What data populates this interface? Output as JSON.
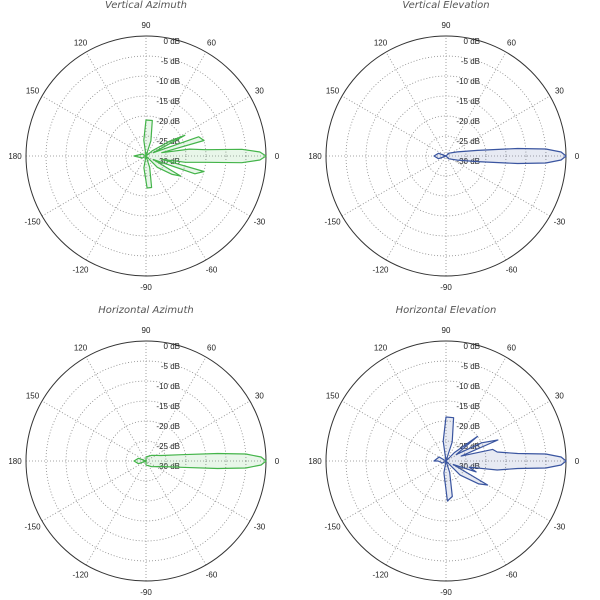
{
  "chart_data": [
    {
      "type": "polar",
      "title": "Vertical Azimuth",
      "rlim": [
        -30,
        0
      ],
      "r_ticks": [
        "0 dB",
        "-5 dB",
        "-10 dB",
        "-15 dB",
        "-20 dB",
        "-25 dB",
        "-30 dB"
      ],
      "theta_ticks": [
        "0",
        "30",
        "60",
        "90",
        "120",
        "150",
        "180",
        "-150",
        "-120",
        "-90",
        "-60",
        "-30"
      ],
      "grid": true,
      "color": "#44b44a",
      "series": [
        {
          "points": [
            [
              -180,
              -27
            ],
            [
              -150,
              -29
            ],
            [
              -120,
              -30
            ],
            [
              -100,
              -27
            ],
            [
              -88,
              -22
            ],
            [
              -80,
              -22
            ],
            [
              -72,
              -27
            ],
            [
              -60,
              -30
            ],
            [
              -45,
              -26
            ],
            [
              -35,
              -22
            ],
            [
              -30,
              -20
            ],
            [
              -26,
              -28
            ],
            [
              -20,
              -17
            ],
            [
              -15,
              -15
            ],
            [
              -12,
              -26
            ],
            [
              -9,
              -20
            ],
            [
              -6,
              -15
            ],
            [
              -4,
              -6
            ],
            [
              -2,
              -1.5
            ],
            [
              0,
              0
            ],
            [
              2,
              -1.5
            ],
            [
              4,
              -6
            ],
            [
              6,
              -15
            ],
            [
              9,
              -19
            ],
            [
              12,
              -26
            ],
            [
              15,
              -15
            ],
            [
              20,
              -16
            ],
            [
              24,
              -28
            ],
            [
              28,
              -19
            ],
            [
              32,
              -23
            ],
            [
              40,
              -28
            ],
            [
              60,
              -30
            ],
            [
              72,
              -26
            ],
            [
              80,
              -21
            ],
            [
              90,
              -21
            ],
            [
              98,
              -26
            ],
            [
              110,
              -30
            ],
            [
              150,
              -29
            ],
            [
              180,
              -27
            ]
          ]
        }
      ]
    },
    {
      "type": "polar",
      "title": "Vertical Elevation",
      "rlim": [
        -30,
        0
      ],
      "r_ticks": [
        "0 dB",
        "-5 dB",
        "-10 dB",
        "-15 dB",
        "-20 dB",
        "-25 dB",
        "-30 dB"
      ],
      "theta_ticks": [
        "0",
        "30",
        "60",
        "90",
        "120",
        "150",
        "180",
        "-150",
        "-120",
        "-90",
        "-60",
        "-30"
      ],
      "grid": true,
      "color": "#3a55a0",
      "series": [
        {
          "points": [
            [
              -180,
              -27
            ],
            [
              -160,
              -28
            ],
            [
              -120,
              -30
            ],
            [
              -90,
              -30
            ],
            [
              -45,
              -29
            ],
            [
              -20,
              -27
            ],
            [
              -10,
              -22
            ],
            [
              -6,
              -12
            ],
            [
              -4,
              -5
            ],
            [
              -2,
              -1.2
            ],
            [
              0,
              0
            ],
            [
              2,
              -1.2
            ],
            [
              4,
              -5
            ],
            [
              6,
              -12
            ],
            [
              10,
              -22
            ],
            [
              20,
              -27
            ],
            [
              45,
              -29
            ],
            [
              90,
              -30
            ],
            [
              120,
              -30
            ],
            [
              160,
              -28
            ],
            [
              180,
              -27
            ]
          ]
        }
      ]
    },
    {
      "type": "polar",
      "title": "Horizontal Azimuth",
      "rlim": [
        -30,
        0
      ],
      "r_ticks": [
        "0 dB",
        "-5 dB",
        "-10 dB",
        "-15 dB",
        "-20 dB",
        "-25 dB",
        "-30 dB"
      ],
      "theta_ticks": [
        "0",
        "30",
        "60",
        "90",
        "120",
        "150",
        "180",
        "-150",
        "-120",
        "-90",
        "-60",
        "-30"
      ],
      "grid": true,
      "color": "#44b44a",
      "series": [
        {
          "points": [
            [
              -180,
              -27
            ],
            [
              -160,
              -28
            ],
            [
              -120,
              -30
            ],
            [
              -90,
              -29
            ],
            [
              -45,
              -28
            ],
            [
              -20,
              -26
            ],
            [
              -10,
              -21
            ],
            [
              -6,
              -12
            ],
            [
              -4,
              -5
            ],
            [
              -2,
              -1.2
            ],
            [
              0,
              0
            ],
            [
              2,
              -1.2
            ],
            [
              4,
              -5
            ],
            [
              6,
              -12
            ],
            [
              10,
              -21
            ],
            [
              20,
              -26
            ],
            [
              45,
              -28
            ],
            [
              90,
              -29
            ],
            [
              120,
              -30
            ],
            [
              160,
              -28
            ],
            [
              180,
              -27
            ]
          ]
        }
      ]
    },
    {
      "type": "polar",
      "title": "Horizontal Elevation",
      "rlim": [
        -30,
        0
      ],
      "r_ticks": [
        "0 dB",
        "-5 dB",
        "-10 dB",
        "-15 dB",
        "-20 dB",
        "-25 dB",
        "-30 dB"
      ],
      "theta_ticks": [
        "0",
        "30",
        "60",
        "90",
        "120",
        "150",
        "180",
        "-150",
        "-120",
        "-90",
        "-60",
        "-30"
      ],
      "grid": true,
      "color": "#3a55a0",
      "series": [
        {
          "points": [
            [
              -180,
              -28
            ],
            [
              -150,
              -29
            ],
            [
              -120,
              -30
            ],
            [
              -100,
              -27
            ],
            [
              -88,
              -20
            ],
            [
              -80,
              -21
            ],
            [
              -72,
              -27
            ],
            [
              -60,
              -30
            ],
            [
              -45,
              -25
            ],
            [
              -35,
              -20
            ],
            [
              -30,
              -18
            ],
            [
              -26,
              -28
            ],
            [
              -20,
              -22
            ],
            [
              -15,
              -24
            ],
            [
              -10,
              -17
            ],
            [
              -6,
              -12
            ],
            [
              -4,
              -5
            ],
            [
              -2,
              -1.2
            ],
            [
              0,
              0
            ],
            [
              2,
              -1.2
            ],
            [
              4,
              -5
            ],
            [
              6,
              -12
            ],
            [
              10,
              -17
            ],
            [
              14,
              -18
            ],
            [
              18,
              -26
            ],
            [
              22,
              -16
            ],
            [
              27,
              -20
            ],
            [
              32,
              -27
            ],
            [
              38,
              -20
            ],
            [
              45,
              -27
            ],
            [
              60,
              -30
            ],
            [
              72,
              -25
            ],
            [
              80,
              -19
            ],
            [
              90,
              -19
            ],
            [
              98,
              -25
            ],
            [
              110,
              -30
            ],
            [
              150,
              -28
            ],
            [
              180,
              -27
            ]
          ]
        }
      ]
    }
  ]
}
